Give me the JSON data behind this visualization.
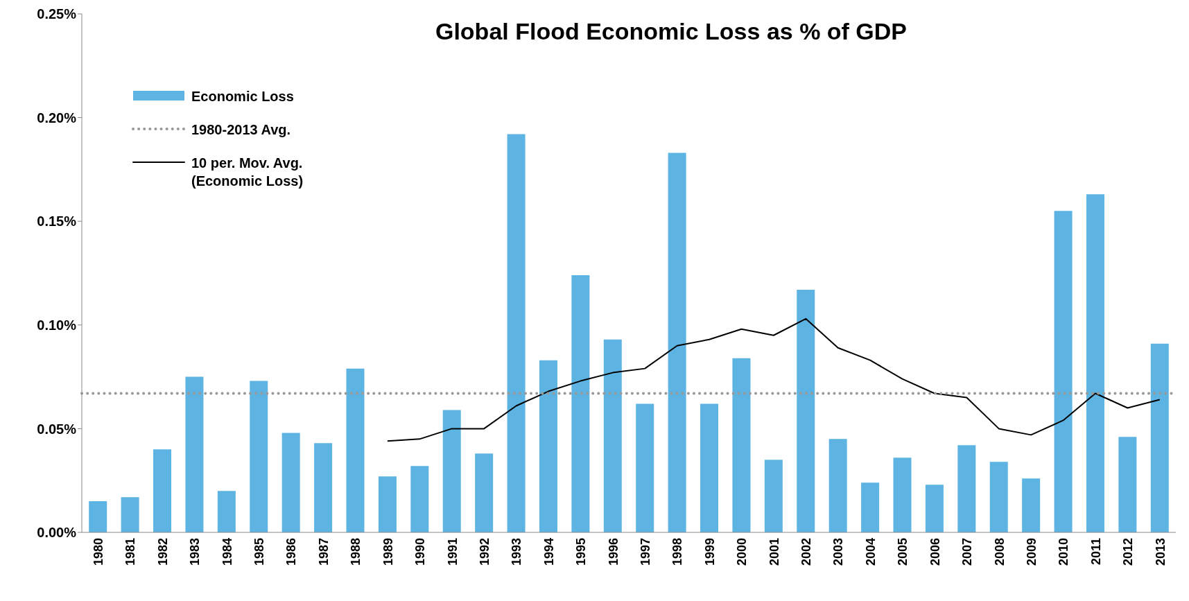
{
  "chart_data": {
    "type": "bar",
    "title": "Global Flood Economic Loss as % of GDP",
    "categories": [
      "1980",
      "1981",
      "1982",
      "1983",
      "1984",
      "1985",
      "1986",
      "1987",
      "1988",
      "1989",
      "1990",
      "1991",
      "1992",
      "1993",
      "1994",
      "1995",
      "1996",
      "1997",
      "1998",
      "1999",
      "2000",
      "2001",
      "2002",
      "2003",
      "2004",
      "2005",
      "2006",
      "2007",
      "2008",
      "2009",
      "2010",
      "2011",
      "2012",
      "2013"
    ],
    "series": [
      {
        "name": "Economic Loss",
        "color": "#5db4e3",
        "values": [
          0.015,
          0.017,
          0.04,
          0.075,
          0.02,
          0.073,
          0.048,
          0.043,
          0.079,
          0.027,
          0.032,
          0.059,
          0.038,
          0.192,
          0.083,
          0.124,
          0.093,
          0.062,
          0.183,
          0.062,
          0.084,
          0.035,
          0.117,
          0.045,
          0.024,
          0.036,
          0.023,
          0.042,
          0.034,
          0.026,
          0.155,
          0.163,
          0.046,
          0.091
        ]
      },
      {
        "name": "10 per. Mov. Avg. (Economic Loss)",
        "type": "line",
        "color": "#000000",
        "values": [
          null,
          null,
          null,
          null,
          null,
          null,
          null,
          null,
          null,
          0.044,
          0.045,
          0.05,
          0.05,
          0.061,
          0.068,
          0.073,
          0.077,
          0.079,
          0.09,
          0.093,
          0.098,
          0.095,
          0.103,
          0.089,
          0.083,
          0.074,
          0.067,
          0.065,
          0.05,
          0.047,
          0.054,
          0.067,
          0.06,
          0.064
        ]
      }
    ],
    "ref_lines": [
      {
        "axis": "y",
        "value": 0.067,
        "label": "1980-2013 Avg.",
        "color": "#999999",
        "line_style": "dotted"
      }
    ],
    "ylim": [
      0,
      0.25
    ],
    "yticks": [
      {
        "value": 0,
        "label": "0.00%"
      },
      {
        "value": 0.05,
        "label": "0.05%"
      },
      {
        "value": 0.1,
        "label": "0.10%"
      },
      {
        "value": 0.15,
        "label": "0.15%"
      },
      {
        "value": 0.2,
        "label": "0.20%"
      },
      {
        "value": 0.25,
        "label": "0.25%"
      }
    ],
    "grid": false,
    "legend": "top left",
    "marker": "none"
  }
}
